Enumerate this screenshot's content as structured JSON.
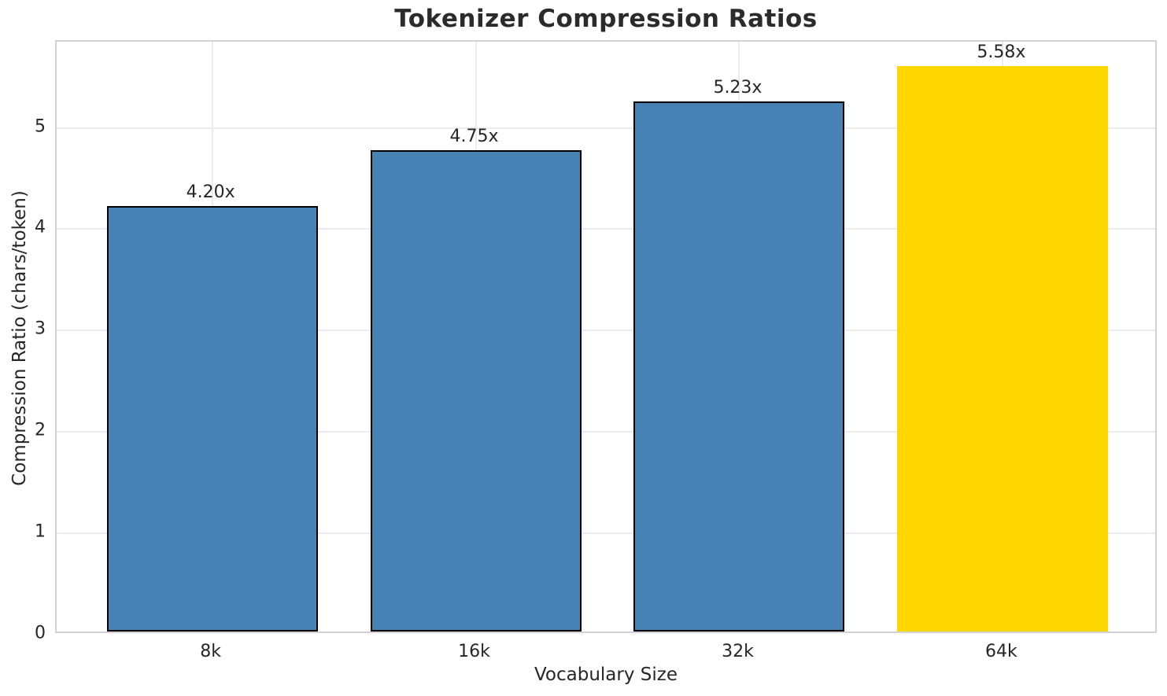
{
  "chart_data": {
    "type": "bar",
    "title": "Tokenizer Compression Ratios",
    "xlabel": "Vocabulary Size",
    "ylabel": "Compression Ratio (chars/token)",
    "categories": [
      "8k",
      "16k",
      "32k",
      "64k"
    ],
    "values": [
      4.2,
      4.75,
      5.23,
      5.58
    ],
    "bar_labels": [
      "4.20x",
      "4.75x",
      "5.23x",
      "5.58x"
    ],
    "yticks": [
      0,
      1,
      2,
      3,
      4,
      5
    ],
    "ylim": [
      0,
      5.85
    ],
    "grid": true,
    "legend": "none",
    "bar_colors": [
      "#4682B4",
      "#4682B4",
      "#4682B4",
      "#FFD700"
    ],
    "bar_edge_colors": [
      "#000000",
      "#000000",
      "#000000",
      "none"
    ],
    "highlight_index": 3
  },
  "colors": {
    "background": "#ffffff",
    "grid": "#ebebef",
    "spine": "#d2d2d6",
    "text": "#262626",
    "title": "#2b2b2b",
    "bar_default": "#4682B4",
    "bar_highlight": "#FFD700"
  }
}
